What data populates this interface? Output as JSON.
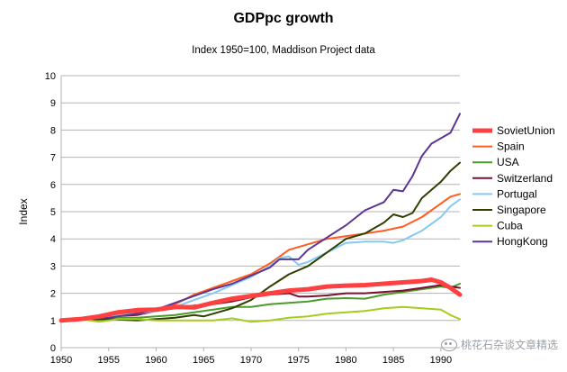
{
  "chart_data": {
    "type": "line",
    "title": "GDPpc growth",
    "subtitle": "Index 1950=100, Maddison Project data",
    "xlabel": "",
    "ylabel": "Index",
    "xlim": [
      1950,
      1992
    ],
    "ylim": [
      0,
      10
    ],
    "x_ticks": [
      1950,
      1955,
      1960,
      1965,
      1970,
      1975,
      1980,
      1985,
      1990
    ],
    "y_ticks": [
      0,
      1,
      2,
      3,
      4,
      5,
      6,
      7,
      8,
      9,
      10
    ],
    "grid": "horizontal",
    "legend_position": "right",
    "series": [
      {
        "name": "SovietUnion",
        "color": "#ff4040",
        "width": 5,
        "points": [
          [
            1950,
            1.0
          ],
          [
            1952,
            1.05
          ],
          [
            1954,
            1.15
          ],
          [
            1956,
            1.3
          ],
          [
            1958,
            1.38
          ],
          [
            1960,
            1.4
          ],
          [
            1962,
            1.5
          ],
          [
            1964,
            1.48
          ],
          [
            1966,
            1.65
          ],
          [
            1968,
            1.8
          ],
          [
            1970,
            1.9
          ],
          [
            1972,
            2.0
          ],
          [
            1974,
            2.1
          ],
          [
            1976,
            2.15
          ],
          [
            1978,
            2.25
          ],
          [
            1980,
            2.28
          ],
          [
            1982,
            2.3
          ],
          [
            1984,
            2.35
          ],
          [
            1986,
            2.4
          ],
          [
            1988,
            2.45
          ],
          [
            1989,
            2.5
          ],
          [
            1990,
            2.4
          ],
          [
            1991,
            2.2
          ],
          [
            1992,
            1.95
          ]
        ]
      },
      {
        "name": "Spain",
        "color": "#ff5c1f",
        "width": 2,
        "points": [
          [
            1950,
            1.0
          ],
          [
            1952,
            1.08
          ],
          [
            1955,
            1.2
          ],
          [
            1958,
            1.3
          ],
          [
            1960,
            1.35
          ],
          [
            1962,
            1.6
          ],
          [
            1964,
            1.95
          ],
          [
            1966,
            2.2
          ],
          [
            1968,
            2.45
          ],
          [
            1970,
            2.7
          ],
          [
            1972,
            3.1
          ],
          [
            1974,
            3.6
          ],
          [
            1976,
            3.8
          ],
          [
            1978,
            4.0
          ],
          [
            1980,
            4.1
          ],
          [
            1982,
            4.2
          ],
          [
            1984,
            4.3
          ],
          [
            1986,
            4.45
          ],
          [
            1988,
            4.8
          ],
          [
            1990,
            5.3
          ],
          [
            1991,
            5.55
          ],
          [
            1992,
            5.65
          ]
        ]
      },
      {
        "name": "USA",
        "color": "#4c9a2a",
        "width": 2,
        "points": [
          [
            1950,
            1.0
          ],
          [
            1953,
            1.08
          ],
          [
            1955,
            1.1
          ],
          [
            1958,
            1.1
          ],
          [
            1960,
            1.15
          ],
          [
            1962,
            1.2
          ],
          [
            1964,
            1.3
          ],
          [
            1966,
            1.4
          ],
          [
            1968,
            1.5
          ],
          [
            1970,
            1.5
          ],
          [
            1972,
            1.6
          ],
          [
            1974,
            1.65
          ],
          [
            1976,
            1.7
          ],
          [
            1978,
            1.8
          ],
          [
            1980,
            1.82
          ],
          [
            1982,
            1.8
          ],
          [
            1984,
            1.95
          ],
          [
            1986,
            2.05
          ],
          [
            1988,
            2.15
          ],
          [
            1990,
            2.25
          ],
          [
            1991,
            2.2
          ],
          [
            1992,
            2.35
          ]
        ]
      },
      {
        "name": "Switzerland",
        "color": "#7a0f2e",
        "width": 2,
        "points": [
          [
            1950,
            1.0
          ],
          [
            1952,
            1.05
          ],
          [
            1955,
            1.15
          ],
          [
            1958,
            1.2
          ],
          [
            1960,
            1.35
          ],
          [
            1962,
            1.45
          ],
          [
            1964,
            1.55
          ],
          [
            1966,
            1.6
          ],
          [
            1968,
            1.7
          ],
          [
            1970,
            1.85
          ],
          [
            1972,
            1.95
          ],
          [
            1974,
            2.0
          ],
          [
            1975,
            1.88
          ],
          [
            1976,
            1.88
          ],
          [
            1978,
            1.92
          ],
          [
            1980,
            2.0
          ],
          [
            1982,
            2.0
          ],
          [
            1984,
            2.05
          ],
          [
            1986,
            2.1
          ],
          [
            1988,
            2.2
          ],
          [
            1990,
            2.3
          ],
          [
            1991,
            2.25
          ],
          [
            1992,
            2.2
          ]
        ]
      },
      {
        "name": "Portugal",
        "color": "#84c8f4",
        "width": 2,
        "points": [
          [
            1950,
            1.0
          ],
          [
            1952,
            1.05
          ],
          [
            1955,
            1.15
          ],
          [
            1958,
            1.25
          ],
          [
            1960,
            1.35
          ],
          [
            1962,
            1.5
          ],
          [
            1964,
            1.75
          ],
          [
            1966,
            2.0
          ],
          [
            1968,
            2.3
          ],
          [
            1970,
            2.6
          ],
          [
            1972,
            3.0
          ],
          [
            1973,
            3.3
          ],
          [
            1974,
            3.35
          ],
          [
            1975,
            3.05
          ],
          [
            1976,
            3.15
          ],
          [
            1978,
            3.5
          ],
          [
            1980,
            3.85
          ],
          [
            1982,
            3.9
          ],
          [
            1984,
            3.9
          ],
          [
            1985,
            3.85
          ],
          [
            1986,
            3.95
          ],
          [
            1988,
            4.3
          ],
          [
            1990,
            4.8
          ],
          [
            1991,
            5.2
          ],
          [
            1992,
            5.45
          ]
        ]
      },
      {
        "name": "Singapore",
        "color": "#2f3f00",
        "width": 2,
        "points": [
          [
            1950,
            1.0
          ],
          [
            1952,
            1.02
          ],
          [
            1955,
            1.05
          ],
          [
            1958,
            1.0
          ],
          [
            1960,
            1.05
          ],
          [
            1962,
            1.1
          ],
          [
            1964,
            1.2
          ],
          [
            1965,
            1.15
          ],
          [
            1966,
            1.25
          ],
          [
            1968,
            1.45
          ],
          [
            1970,
            1.75
          ],
          [
            1972,
            2.25
          ],
          [
            1974,
            2.7
          ],
          [
            1976,
            3.0
          ],
          [
            1978,
            3.5
          ],
          [
            1980,
            4.0
          ],
          [
            1982,
            4.2
          ],
          [
            1984,
            4.6
          ],
          [
            1985,
            4.9
          ],
          [
            1986,
            4.8
          ],
          [
            1987,
            4.95
          ],
          [
            1988,
            5.5
          ],
          [
            1990,
            6.1
          ],
          [
            1991,
            6.5
          ],
          [
            1992,
            6.8
          ]
        ]
      },
      {
        "name": "Cuba",
        "color": "#a6cc1c",
        "width": 2,
        "points": [
          [
            1950,
            1.0
          ],
          [
            1952,
            1.05
          ],
          [
            1954,
            0.95
          ],
          [
            1956,
            1.05
          ],
          [
            1958,
            1.05
          ],
          [
            1960,
            1.0
          ],
          [
            1962,
            1.0
          ],
          [
            1964,
            1.0
          ],
          [
            1966,
            1.0
          ],
          [
            1968,
            1.08
          ],
          [
            1970,
            0.95
          ],
          [
            1972,
            1.0
          ],
          [
            1974,
            1.1
          ],
          [
            1976,
            1.15
          ],
          [
            1978,
            1.25
          ],
          [
            1980,
            1.3
          ],
          [
            1982,
            1.35
          ],
          [
            1984,
            1.45
          ],
          [
            1986,
            1.5
          ],
          [
            1988,
            1.45
          ],
          [
            1990,
            1.4
          ],
          [
            1991,
            1.2
          ],
          [
            1992,
            1.05
          ]
        ]
      },
      {
        "name": "HongKong",
        "color": "#5c3592",
        "width": 2,
        "points": [
          [
            1950,
            1.0
          ],
          [
            1952,
            1.05
          ],
          [
            1955,
            1.1
          ],
          [
            1958,
            1.25
          ],
          [
            1960,
            1.4
          ],
          [
            1962,
            1.65
          ],
          [
            1964,
            1.9
          ],
          [
            1966,
            2.15
          ],
          [
            1968,
            2.35
          ],
          [
            1970,
            2.65
          ],
          [
            1972,
            2.95
          ],
          [
            1973,
            3.25
          ],
          [
            1975,
            3.25
          ],
          [
            1976,
            3.6
          ],
          [
            1978,
            4.05
          ],
          [
            1980,
            4.5
          ],
          [
            1982,
            5.05
          ],
          [
            1984,
            5.35
          ],
          [
            1985,
            5.8
          ],
          [
            1986,
            5.75
          ],
          [
            1987,
            6.3
          ],
          [
            1988,
            7.05
          ],
          [
            1989,
            7.5
          ],
          [
            1990,
            7.7
          ],
          [
            1991,
            7.9
          ],
          [
            1992,
            8.6
          ]
        ]
      }
    ]
  },
  "watermark": {
    "text": "桃花石杂谈文章精选"
  }
}
